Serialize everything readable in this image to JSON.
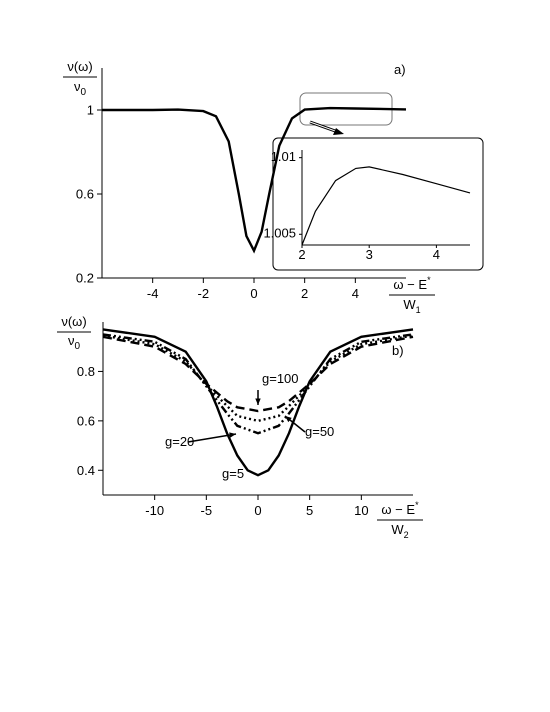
{
  "chart_data": [
    {
      "type": "line",
      "panel_label": "a)",
      "ylabel": {
        "numerator": "ν(ω)",
        "denominator": "ν",
        "denominator_sub": "0"
      },
      "xlabel": {
        "numerator": "ω − E",
        "numerator_sup": "*",
        "denominator": "W",
        "denominator_sub": "1"
      },
      "xlim": [
        -6,
        6
      ],
      "ylim": [
        0.2,
        1.2
      ],
      "xticks": [
        -4,
        -2,
        0,
        2,
        4
      ],
      "yticks": [
        0.2,
        0.6,
        1
      ],
      "series": [
        {
          "color": "#000000",
          "dash": "solid",
          "x": [
            -6,
            -4,
            -3,
            -2,
            -1.5,
            -1,
            -0.6,
            -0.3,
            0,
            0.3,
            0.6,
            1,
            1.5,
            2,
            3,
            4,
            6
          ],
          "values": [
            1,
            1,
            1.002,
            0.995,
            0.97,
            0.85,
            0.6,
            0.4,
            0.33,
            0.42,
            0.6,
            0.83,
            0.96,
            1.002,
            1.009,
            1.007,
            1.003
          ]
        }
      ]
    },
    {
      "type": "line",
      "xlim": [
        2,
        4.5
      ],
      "ylim": [
        1.0043,
        1.0105
      ],
      "xticks": [
        2,
        3,
        4
      ],
      "yticks": [
        1.005,
        1.01
      ],
      "series": [
        {
          "color": "#000000",
          "dash": "solid",
          "x": [
            2,
            2.2,
            2.5,
            2.8,
            3,
            3.5,
            4,
            4.5
          ],
          "values": [
            1.0043,
            1.0065,
            1.0085,
            1.0093,
            1.0094,
            1.0089,
            1.0083,
            1.0077
          ]
        }
      ]
    },
    {
      "type": "line",
      "panel_label": "b)",
      "ylabel": {
        "numerator": "ν(ω)",
        "denominator": "ν",
        "denominator_sub": "0"
      },
      "xlabel": {
        "numerator": "ω − E",
        "numerator_sup": "*",
        "denominator": "W",
        "denominator_sub": "2"
      },
      "xlim": [
        -15,
        15
      ],
      "ylim": [
        0.3,
        1.0
      ],
      "xticks": [
        -10,
        -5,
        0,
        5,
        10
      ],
      "yticks": [
        0.4,
        0.6,
        0.8
      ],
      "series": [
        {
          "name": "g=5",
          "color": "#000000",
          "dash": "solid",
          "x": [
            -15,
            -10,
            -7,
            -5,
            -4,
            -3,
            -2,
            -1,
            0,
            1,
            2,
            3,
            4,
            5,
            7,
            10,
            15
          ],
          "values": [
            0.97,
            0.94,
            0.88,
            0.76,
            0.66,
            0.55,
            0.46,
            0.4,
            0.38,
            0.4,
            0.46,
            0.55,
            0.66,
            0.76,
            0.88,
            0.94,
            0.97
          ]
        },
        {
          "name": "g=20",
          "color": "#000000",
          "dash": "dashdotdot",
          "x": [
            -15,
            -10,
            -7,
            -5,
            -3,
            -2,
            0,
            2,
            3,
            5,
            7,
            10,
            15
          ],
          "values": [
            0.95,
            0.92,
            0.85,
            0.74,
            0.63,
            0.58,
            0.55,
            0.58,
            0.63,
            0.74,
            0.85,
            0.92,
            0.95
          ]
        },
        {
          "name": "g=50",
          "color": "#000000",
          "dash": "dotted",
          "x": [
            -15,
            -10,
            -7,
            -5,
            -3,
            -2,
            0,
            2,
            3,
            5,
            7,
            10,
            15
          ],
          "values": [
            0.945,
            0.91,
            0.84,
            0.745,
            0.66,
            0.62,
            0.6,
            0.62,
            0.66,
            0.745,
            0.84,
            0.91,
            0.945
          ]
        },
        {
          "name": "g=100",
          "color": "#000000",
          "dash": "dashed",
          "x": [
            -15,
            -10,
            -7,
            -5,
            -3,
            -2,
            0,
            2,
            3,
            5,
            7,
            10,
            15
          ],
          "values": [
            0.94,
            0.9,
            0.83,
            0.75,
            0.68,
            0.655,
            0.64,
            0.655,
            0.68,
            0.75,
            0.83,
            0.9,
            0.94
          ]
        }
      ]
    }
  ]
}
